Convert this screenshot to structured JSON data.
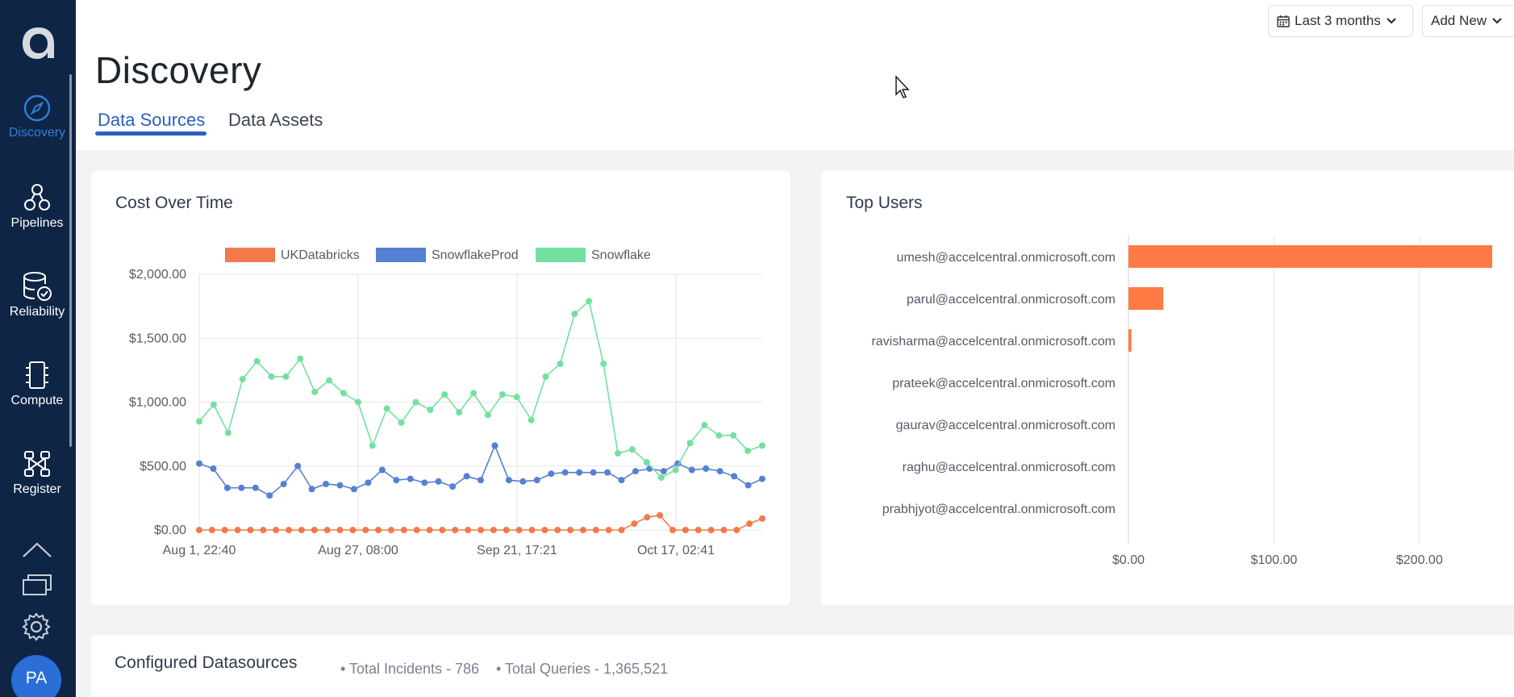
{
  "sidebar": {
    "items": [
      {
        "label": "Discovery",
        "icon": "compass-icon",
        "active": true
      },
      {
        "label": "Pipelines",
        "icon": "pipelines-icon"
      },
      {
        "label": "Reliability",
        "icon": "database-check-icon"
      },
      {
        "label": "Compute",
        "icon": "chip-icon"
      },
      {
        "label": "Register",
        "icon": "register-icon"
      }
    ],
    "bottom_icons": [
      "upload-icon",
      "messages-icon",
      "gear-icon"
    ],
    "avatar_initials": "PA"
  },
  "header": {
    "title": "Discovery",
    "tabs": [
      {
        "label": "Data Sources",
        "active": true
      },
      {
        "label": "Data Assets",
        "active": false
      }
    ],
    "date_filter": "Last 3 months",
    "add_new": "Add New"
  },
  "cost_card": {
    "title": "Cost Over Time"
  },
  "users_card": {
    "title": "Top Users"
  },
  "datasources": {
    "title": "Configured Datasources",
    "total_incidents": "• Total Incidents - 786",
    "total_queries": "• Total Queries - 1,365,521"
  },
  "colors": {
    "sidebar": "#0e2545",
    "accent": "#2a60c0",
    "ukdatabricks": "#f27a4a",
    "snowflakeprod": "#5580d4",
    "snowflake": "#74e0a0",
    "bar": "#ff7a45"
  },
  "chart_data": [
    {
      "type": "line",
      "title": "Cost Over Time",
      "x_tick_labels": [
        "Aug 1, 22:40",
        "Aug 27, 08:00",
        "Sep 21, 17:21",
        "Oct 17, 02:41"
      ],
      "y_tick_labels": [
        "$0.00",
        "$500.00",
        "$1,000.00",
        "$1,500.00",
        "$2,000.00"
      ],
      "ylim": [
        0,
        2000
      ],
      "grid": true,
      "legend_position": "top",
      "series": [
        {
          "name": "UKDatabricks",
          "color": "#f27a4a",
          "values": [
            0,
            0,
            0,
            0,
            0,
            0,
            0,
            0,
            0,
            0,
            0,
            0,
            0,
            0,
            0,
            0,
            0,
            0,
            0,
            0,
            0,
            0,
            0,
            0,
            0,
            0,
            0,
            0,
            0,
            0,
            0,
            0,
            0,
            0,
            50,
            100,
            115,
            0,
            0,
            0,
            0,
            0,
            0,
            50,
            90
          ]
        },
        {
          "name": "SnowflakeProd",
          "color": "#5580d4",
          "values": [
            520,
            480,
            330,
            330,
            330,
            270,
            360,
            500,
            320,
            360,
            350,
            320,
            370,
            470,
            390,
            400,
            370,
            380,
            340,
            420,
            390,
            660,
            390,
            380,
            390,
            440,
            450,
            450,
            450,
            450,
            390,
            460,
            480,
            460,
            520,
            470,
            480,
            460,
            420,
            350,
            400
          ]
        },
        {
          "name": "Snowflake",
          "color": "#74e0a0",
          "values": [
            850,
            980,
            760,
            1180,
            1320,
            1200,
            1200,
            1340,
            1080,
            1170,
            1070,
            1000,
            660,
            950,
            840,
            1000,
            940,
            1060,
            920,
            1070,
            900,
            1060,
            1040,
            860,
            1200,
            1300,
            1690,
            1790,
            1300,
            600,
            630,
            530,
            410,
            470,
            680,
            820,
            740,
            740,
            620,
            660
          ]
        }
      ]
    },
    {
      "type": "bar",
      "orientation": "horizontal",
      "title": "Top Users",
      "categories": [
        "umesh@accelcentral.onmicrosoft.com",
        "parul@accelcentral.onmicrosoft.com",
        "ravisharma@accelcentral.onmicrosoft.com",
        "prateek@accelcentral.onmicrosoft.com",
        "gaurav@accelcentral.onmicrosoft.com",
        "raghu@accelcentral.onmicrosoft.com",
        "prabhjyot@accelcentral.onmicrosoft.com"
      ],
      "values": [
        250,
        24,
        2,
        0,
        0,
        0,
        0
      ],
      "x_tick_labels": [
        "$0.00",
        "$100.00",
        "$200.00"
      ],
      "xlim": [
        0,
        250
      ],
      "grid": true
    }
  ]
}
